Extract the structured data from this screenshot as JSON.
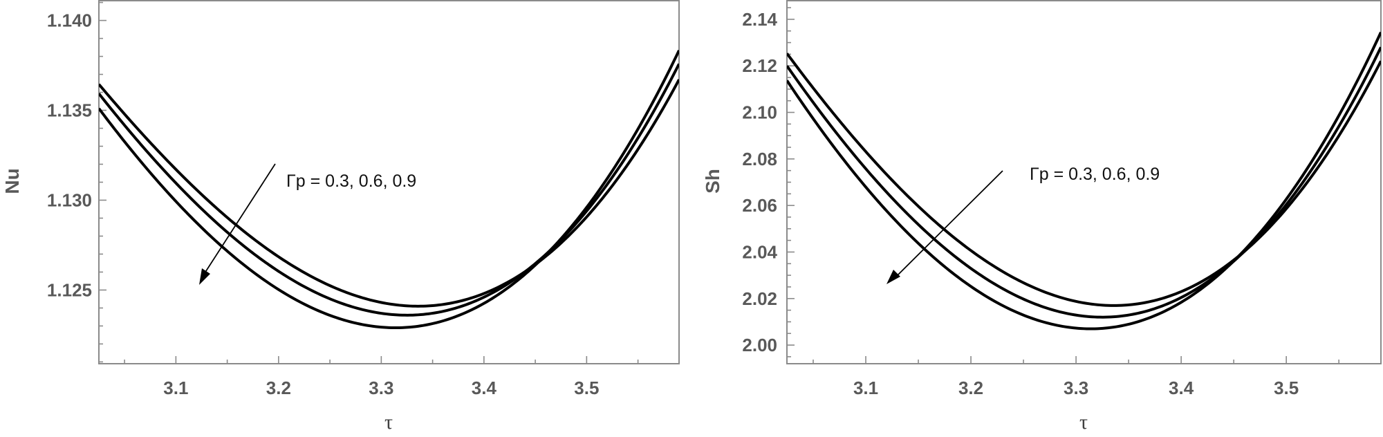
{
  "chart_data": [
    {
      "type": "line",
      "ylabel": "Nu",
      "xlabel": "τ",
      "xlim": [
        3.025,
        3.59
      ],
      "ylim": [
        1.1209,
        1.1411
      ],
      "xticks": [
        3.1,
        3.2,
        3.3,
        3.4,
        3.5
      ],
      "xtick_labels": [
        "3.1",
        "3.2",
        "3.3",
        "3.4",
        "3.5"
      ],
      "yticks": [
        1.125,
        1.13,
        1.135,
        1.14
      ],
      "ytick_labels": [
        "1.125",
        "1.130",
        "1.135",
        "1.140"
      ],
      "annotation": "Γp = 0.3, 0.6, 0.9",
      "series": [
        {
          "x0": 3.336,
          "ymin": 1.1241,
          "curvature": 0.165,
          "cubic": 0.12
        },
        {
          "x0": 3.325,
          "ymin": 1.1236,
          "curvature": 0.17,
          "cubic": 0.11
        },
        {
          "x0": 3.314,
          "ymin": 1.1229,
          "curvature": 0.175,
          "cubic": 0.1
        }
      ],
      "grid": false
    },
    {
      "type": "line",
      "ylabel": "Sh",
      "xlabel": "τ",
      "xlim": [
        3.025,
        3.59
      ],
      "ylim": [
        1.992,
        2.148
      ],
      "xticks": [
        3.1,
        3.2,
        3.3,
        3.4,
        3.5
      ],
      "xtick_labels": [
        "3.1",
        "3.2",
        "3.3",
        "3.4",
        "3.5"
      ],
      "yticks": [
        2.0,
        2.02,
        2.04,
        2.06,
        2.08,
        2.1,
        2.12,
        2.14
      ],
      "ytick_labels": [
        "2.00",
        "2.02",
        "2.04",
        "2.06",
        "2.08",
        "2.10",
        "2.12",
        "2.14"
      ],
      "annotation": "Γp = 0.3, 0.6, 0.9",
      "series": [
        {
          "x0": 3.336,
          "ymin": 2.017,
          "curvature": 1.4,
          "cubic": 0.9
        },
        {
          "x0": 3.325,
          "ymin": 2.012,
          "curvature": 1.44,
          "cubic": 0.8
        },
        {
          "x0": 3.314,
          "ymin": 2.007,
          "curvature": 1.48,
          "cubic": 0.7
        }
      ],
      "grid": false
    }
  ]
}
